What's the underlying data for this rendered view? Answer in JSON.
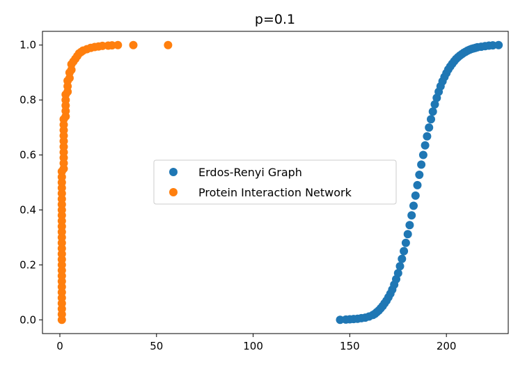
{
  "chart_data": {
    "type": "scatter",
    "title": "p=0.1",
    "xlabel": "",
    "ylabel": "",
    "xlim": [
      -9,
      232
    ],
    "ylim": [
      -0.05,
      1.05
    ],
    "xticks": [
      0,
      50,
      100,
      150,
      200
    ],
    "yticks": [
      0.0,
      0.2,
      0.4,
      0.6,
      0.8,
      1.0
    ],
    "xtick_labels": [
      "0",
      "50",
      "100",
      "150",
      "200"
    ],
    "ytick_labels": [
      "0.0",
      "0.2",
      "0.4",
      "0.6",
      "0.8",
      "1.0"
    ],
    "grid": false,
    "legend_position": "center",
    "series": [
      {
        "name": "Erdos-Renyi Graph",
        "color": "#1f77b4",
        "points": [
          [
            145,
            0.0
          ],
          [
            148,
            0.001
          ],
          [
            150,
            0.002
          ],
          [
            152,
            0.003
          ],
          [
            154,
            0.004
          ],
          [
            156,
            0.006
          ],
          [
            158,
            0.008
          ],
          [
            160,
            0.012
          ],
          [
            162,
            0.018
          ],
          [
            163,
            0.022
          ],
          [
            164,
            0.028
          ],
          [
            165,
            0.034
          ],
          [
            166,
            0.042
          ],
          [
            167,
            0.05
          ],
          [
            168,
            0.06
          ],
          [
            169,
            0.07
          ],
          [
            170,
            0.082
          ],
          [
            171,
            0.095
          ],
          [
            172,
            0.11
          ],
          [
            173,
            0.128
          ],
          [
            174,
            0.148
          ],
          [
            175,
            0.17
          ],
          [
            176,
            0.195
          ],
          [
            177,
            0.222
          ],
          [
            178,
            0.25
          ],
          [
            179,
            0.28
          ],
          [
            180,
            0.312
          ],
          [
            181,
            0.345
          ],
          [
            182,
            0.38
          ],
          [
            183,
            0.415
          ],
          [
            184,
            0.452
          ],
          [
            185,
            0.49
          ],
          [
            186,
            0.528
          ],
          [
            187,
            0.565
          ],
          [
            188,
            0.6
          ],
          [
            189,
            0.635
          ],
          [
            190,
            0.668
          ],
          [
            191,
            0.7
          ],
          [
            192,
            0.73
          ],
          [
            193,
            0.758
          ],
          [
            194,
            0.784
          ],
          [
            195,
            0.808
          ],
          [
            196,
            0.83
          ],
          [
            197,
            0.85
          ],
          [
            198,
            0.868
          ],
          [
            199,
            0.884
          ],
          [
            200,
            0.898
          ],
          [
            201,
            0.911
          ],
          [
            202,
            0.922
          ],
          [
            203,
            0.932
          ],
          [
            204,
            0.941
          ],
          [
            205,
            0.949
          ],
          [
            206,
            0.956
          ],
          [
            207,
            0.962
          ],
          [
            208,
            0.967
          ],
          [
            209,
            0.972
          ],
          [
            210,
            0.976
          ],
          [
            211,
            0.98
          ],
          [
            212,
            0.983
          ],
          [
            213,
            0.986
          ],
          [
            214,
            0.988
          ],
          [
            215,
            0.99
          ],
          [
            216,
            0.992
          ],
          [
            218,
            0.994
          ],
          [
            220,
            0.996
          ],
          [
            222,
            0.998
          ],
          [
            224,
            0.999
          ],
          [
            227,
            1.0
          ]
        ]
      },
      {
        "name": "Protein Interaction Network",
        "color": "#ff7f0e",
        "points": [
          [
            1,
            0.0
          ],
          [
            1,
            0.02
          ],
          [
            1,
            0.04
          ],
          [
            1,
            0.06
          ],
          [
            1,
            0.08
          ],
          [
            1,
            0.1
          ],
          [
            1,
            0.12
          ],
          [
            1,
            0.14
          ],
          [
            1,
            0.16
          ],
          [
            1,
            0.18
          ],
          [
            1,
            0.2
          ],
          [
            1,
            0.22
          ],
          [
            1,
            0.24
          ],
          [
            1,
            0.26
          ],
          [
            1,
            0.28
          ],
          [
            1,
            0.3
          ],
          [
            1,
            0.32
          ],
          [
            1,
            0.34
          ],
          [
            1,
            0.36
          ],
          [
            1,
            0.38
          ],
          [
            1,
            0.4
          ],
          [
            1,
            0.42
          ],
          [
            1,
            0.44
          ],
          [
            1,
            0.46
          ],
          [
            1,
            0.48
          ],
          [
            1,
            0.5
          ],
          [
            1,
            0.52
          ],
          [
            1,
            0.54
          ],
          [
            2,
            0.55
          ],
          [
            2,
            0.57
          ],
          [
            2,
            0.59
          ],
          [
            2,
            0.61
          ],
          [
            2,
            0.63
          ],
          [
            2,
            0.65
          ],
          [
            2,
            0.67
          ],
          [
            2,
            0.69
          ],
          [
            2,
            0.71
          ],
          [
            2,
            0.73
          ],
          [
            3,
            0.74
          ],
          [
            3,
            0.76
          ],
          [
            3,
            0.78
          ],
          [
            3,
            0.8
          ],
          [
            3,
            0.82
          ],
          [
            4,
            0.83
          ],
          [
            4,
            0.85
          ],
          [
            4,
            0.87
          ],
          [
            5,
            0.88
          ],
          [
            5,
            0.9
          ],
          [
            6,
            0.91
          ],
          [
            6,
            0.93
          ],
          [
            7,
            0.94
          ],
          [
            8,
            0.95
          ],
          [
            9,
            0.96
          ],
          [
            10,
            0.97
          ],
          [
            11,
            0.975
          ],
          [
            12,
            0.98
          ],
          [
            14,
            0.985
          ],
          [
            16,
            0.99
          ],
          [
            18,
            0.993
          ],
          [
            20,
            0.995
          ],
          [
            22,
            0.997
          ],
          [
            25,
            0.998
          ],
          [
            27,
            0.999
          ],
          [
            30,
            1.0
          ],
          [
            38,
            1.0
          ],
          [
            56,
            1.0
          ]
        ]
      }
    ]
  }
}
